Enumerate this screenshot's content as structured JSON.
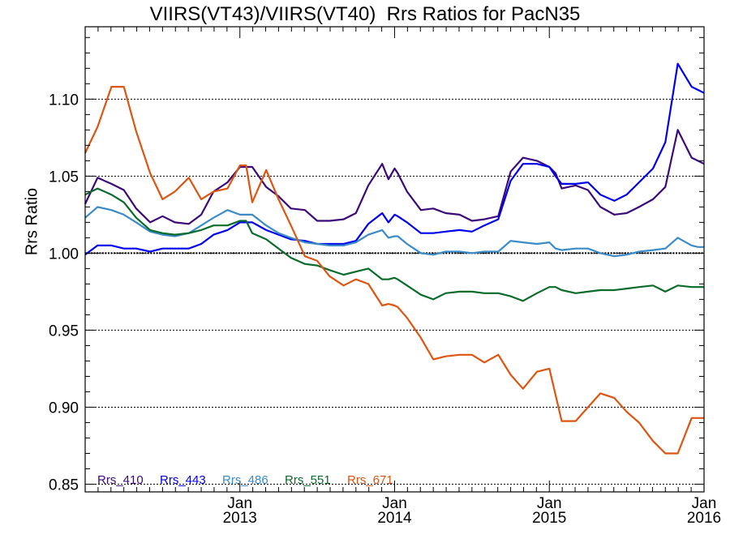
{
  "chart_data": {
    "type": "line",
    "title": "VIIRS(VT43)/VIIRS(VT40)  Rrs Ratios for PacN35",
    "xlabel": "",
    "ylabel": "Rrs Ratio",
    "xlim": [
      2012.0,
      2016.0
    ],
    "ylim": [
      0.845,
      1.147
    ],
    "yticks": [
      "0.85",
      "0.90",
      "0.95",
      "1.00",
      "1.05",
      "1.10"
    ],
    "ytick_values": [
      0.85,
      0.9,
      0.95,
      1.0,
      1.05,
      1.1
    ],
    "xticks": [
      {
        "month": "Jan",
        "year": "2013",
        "value": 2013.0
      },
      {
        "month": "Jan",
        "year": "2014",
        "value": 2014.0
      },
      {
        "month": "Jan",
        "year": "2015",
        "value": 2015.0
      },
      {
        "month": "Jan",
        "year": "2016",
        "value": 2016.0
      }
    ],
    "reference_line": 1.0,
    "legend_position": "bottom-left",
    "x": [
      2012.0,
      2012.08,
      2012.17,
      2012.25,
      2012.33,
      2012.42,
      2012.5,
      2012.58,
      2012.67,
      2012.75,
      2012.83,
      2012.92,
      2013.0,
      2013.04,
      2013.08,
      2013.17,
      2013.25,
      2013.33,
      2013.42,
      2013.5,
      2013.58,
      2013.67,
      2013.75,
      2013.83,
      2013.92,
      2013.96,
      2014.0,
      2014.02,
      2014.08,
      2014.17,
      2014.25,
      2014.33,
      2014.42,
      2014.5,
      2014.58,
      2014.67,
      2014.75,
      2014.83,
      2014.92,
      2015.0,
      2015.04,
      2015.08,
      2015.17,
      2015.25,
      2015.33,
      2015.42,
      2015.5,
      2015.58,
      2015.67,
      2015.75,
      2015.83,
      2015.92,
      2015.96,
      2016.0
    ],
    "series": [
      {
        "name": "Rrs_410",
        "color": "#3a0a7a",
        "values": [
          1.032,
          1.049,
          1.045,
          1.041,
          1.029,
          1.02,
          1.024,
          1.02,
          1.019,
          1.025,
          1.04,
          1.046,
          1.056,
          1.056,
          1.056,
          1.043,
          1.037,
          1.029,
          1.028,
          1.021,
          1.021,
          1.022,
          1.026,
          1.044,
          1.058,
          1.048,
          1.055,
          1.052,
          1.04,
          1.028,
          1.029,
          1.026,
          1.025,
          1.021,
          1.022,
          1.024,
          1.053,
          1.062,
          1.06,
          1.056,
          1.052,
          1.042,
          1.044,
          1.041,
          1.03,
          1.025,
          1.026,
          1.03,
          1.035,
          1.043,
          1.08,
          1.062,
          1.06,
          1.058
        ]
      },
      {
        "name": "Rrs_443",
        "color": "#0000ee",
        "values": [
          0.999,
          1.005,
          1.005,
          1.003,
          1.003,
          1.001,
          1.003,
          1.003,
          1.003,
          1.006,
          1.012,
          1.015,
          1.02,
          1.02,
          1.02,
          1.015,
          1.012,
          1.009,
          1.008,
          1.006,
          1.006,
          1.006,
          1.008,
          1.019,
          1.026,
          1.02,
          1.025,
          1.024,
          1.02,
          1.013,
          1.013,
          1.014,
          1.015,
          1.014,
          1.018,
          1.022,
          1.047,
          1.058,
          1.058,
          1.056,
          1.05,
          1.045,
          1.045,
          1.046,
          1.038,
          1.034,
          1.038,
          1.046,
          1.055,
          1.072,
          1.123,
          1.108,
          1.106,
          1.104
        ]
      },
      {
        "name": "Rrs_486",
        "color": "#3a8bc8",
        "values": [
          1.023,
          1.03,
          1.028,
          1.025,
          1.02,
          1.014,
          1.012,
          1.011,
          1.013,
          1.018,
          1.023,
          1.028,
          1.025,
          1.025,
          1.025,
          1.018,
          1.013,
          1.01,
          1.007,
          1.006,
          1.005,
          1.005,
          1.007,
          1.012,
          1.015,
          1.01,
          1.011,
          1.011,
          1.006,
          1.0,
          0.999,
          1.001,
          1.001,
          1.0,
          1.001,
          1.001,
          1.008,
          1.007,
          1.006,
          1.007,
          1.003,
          1.002,
          1.003,
          1.003,
          1.0,
          0.998,
          0.999,
          1.001,
          1.002,
          1.003,
          1.01,
          1.005,
          1.004,
          1.004
        ]
      },
      {
        "name": "Rrs_551",
        "color": "#0a6b2a",
        "values": [
          1.038,
          1.042,
          1.038,
          1.033,
          1.023,
          1.015,
          1.013,
          1.012,
          1.013,
          1.015,
          1.018,
          1.018,
          1.021,
          1.021,
          1.013,
          1.009,
          1.003,
          0.997,
          0.993,
          0.992,
          0.989,
          0.986,
          0.988,
          0.99,
          0.983,
          0.983,
          0.984,
          0.983,
          0.979,
          0.973,
          0.97,
          0.974,
          0.975,
          0.975,
          0.974,
          0.974,
          0.972,
          0.969,
          0.974,
          0.978,
          0.978,
          0.976,
          0.974,
          0.975,
          0.976,
          0.976,
          0.977,
          0.978,
          0.979,
          0.975,
          0.979,
          0.978,
          0.978,
          0.978
        ]
      },
      {
        "name": "Rrs_671",
        "color": "#dd5511",
        "values": [
          1.065,
          1.082,
          1.108,
          1.108,
          1.079,
          1.052,
          1.035,
          1.04,
          1.049,
          1.035,
          1.04,
          1.042,
          1.057,
          1.057,
          1.033,
          1.054,
          1.035,
          1.018,
          0.998,
          0.995,
          0.985,
          0.979,
          0.983,
          0.98,
          0.966,
          0.967,
          0.966,
          0.965,
          0.958,
          0.945,
          0.931,
          0.933,
          0.934,
          0.934,
          0.929,
          0.934,
          0.921,
          0.912,
          0.923,
          0.925,
          0.908,
          0.891,
          0.891,
          0.9,
          0.909,
          0.906,
          0.897,
          0.89,
          0.878,
          0.87,
          0.87,
          0.893,
          0.893,
          0.893
        ]
      }
    ]
  }
}
